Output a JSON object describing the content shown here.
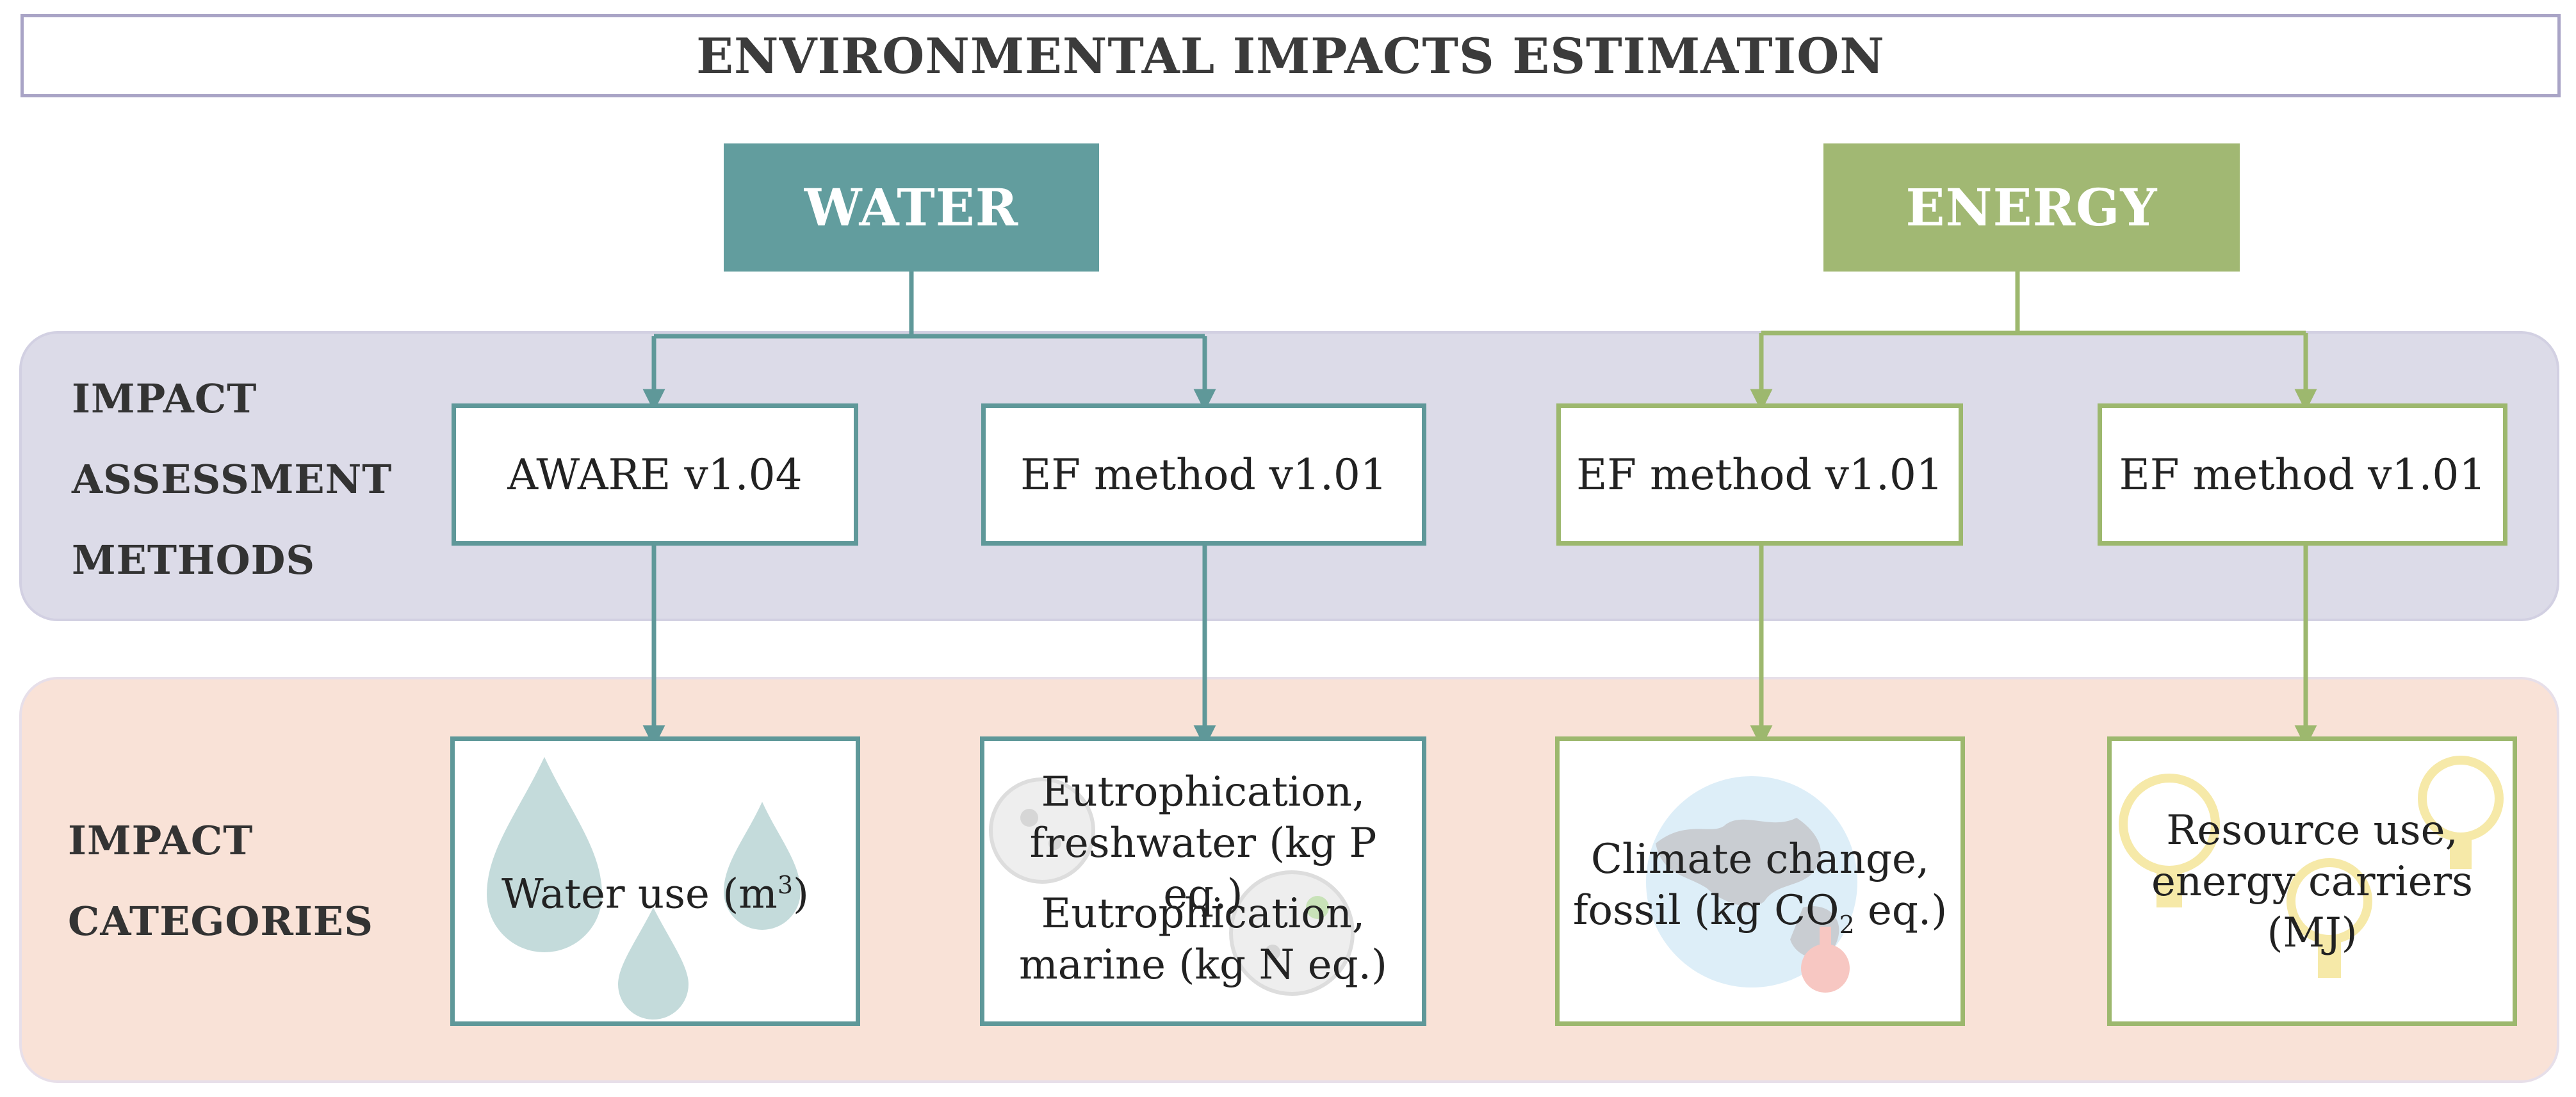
{
  "title": "ENVIRONMENTAL IMPACTS ESTIMATION",
  "headers": {
    "water": "WATER",
    "energy": "ENERGY"
  },
  "bands": {
    "methods": {
      "lines": [
        "IMPACT",
        "ASSESSMENT",
        "METHODS"
      ]
    },
    "categories": {
      "lines": [
        "IMPACT",
        "CATEGORIES"
      ]
    }
  },
  "methods": [
    {
      "label": "AWARE v1.04",
      "group": "water"
    },
    {
      "label": "EF method v1.01",
      "group": "water"
    },
    {
      "label": "EF method v1.01",
      "group": "energy"
    },
    {
      "label": "EF method v1.01",
      "group": "energy"
    }
  ],
  "categories": {
    "water_use": {
      "text": "Water use (m",
      "sup": "3",
      "close": ")"
    },
    "eutrophication": {
      "line1": "Eutrophication,",
      "line2": "freshwater (kg P eq.)",
      "line3": "Eutrophication,",
      "line4": "marine (kg N eq.)"
    },
    "climate": {
      "line1": "Climate change,",
      "line2_pre": "fossil (kg CO",
      "line2_sub": "2",
      "line2_post": " eq.)"
    },
    "resource": {
      "line1": "Resource use,",
      "line2": "energy carriers",
      "line3": "(MJ)"
    }
  },
  "icons": [
    "water-drop-icon",
    "microbe-icon",
    "globe-icon",
    "light-bulb-icon"
  ],
  "colors": {
    "water": "#629d9e",
    "energy": "#a1b873",
    "methods_band": "#dcdbe8",
    "categories_band": "#f9e2d7",
    "title_border": "#a9a4c6"
  }
}
